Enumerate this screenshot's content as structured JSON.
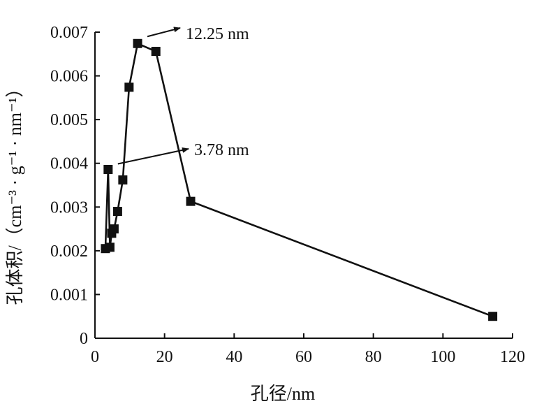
{
  "chart_data": {
    "type": "line",
    "title": "",
    "xlabel": "孔径/nm",
    "ylabel": "孔体积/（cm⁻³ · g⁻¹ · nm⁻¹）",
    "xlim": [
      0,
      120
    ],
    "ylim": [
      0,
      0.007
    ],
    "grid": false,
    "x_ticks": [
      "0",
      "20",
      "40",
      "60",
      "80",
      "100",
      "120"
    ],
    "y_ticks": [
      "0",
      "0.001",
      "0.002",
      "0.003",
      "0.004",
      "0.005",
      "0.006",
      "0.007"
    ],
    "series": [
      {
        "name": "",
        "marker": "square",
        "color": "#111111",
        "points": [
          {
            "x": 3.0,
            "y": 0.00205
          },
          {
            "x": 3.78,
            "y": 0.00386
          },
          {
            "x": 4.3,
            "y": 0.00208
          },
          {
            "x": 4.8,
            "y": 0.0024
          },
          {
            "x": 5.5,
            "y": 0.0025
          },
          {
            "x": 6.5,
            "y": 0.0029
          },
          {
            "x": 8.0,
            "y": 0.00362
          },
          {
            "x": 9.8,
            "y": 0.00574
          },
          {
            "x": 12.25,
            "y": 0.00674
          },
          {
            "x": 17.5,
            "y": 0.00656
          },
          {
            "x": 27.5,
            "y": 0.00313
          },
          {
            "x": 114.3,
            "y": 0.0005
          }
        ]
      }
    ],
    "annotations": [
      {
        "text": "12.25 nm",
        "x": 12.25,
        "y": 0.00674
      },
      {
        "text": "3.78 nm",
        "x": 3.78,
        "y": 0.00386
      }
    ]
  }
}
